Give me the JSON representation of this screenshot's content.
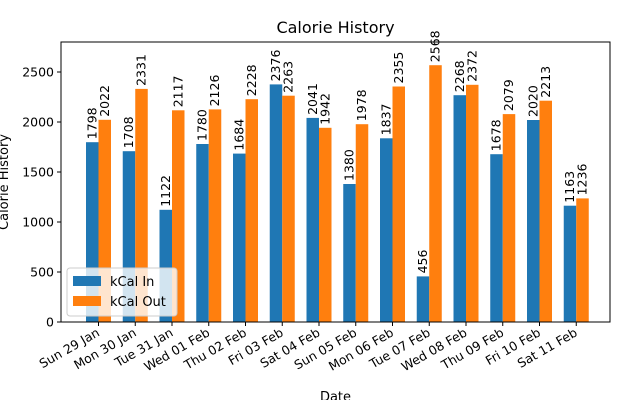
{
  "chart_data": {
    "type": "bar",
    "title": "Calorie History",
    "xlabel": "Date",
    "ylabel": "Calorie History",
    "ylim": [
      0,
      2800
    ],
    "yticks": [
      0,
      500,
      1000,
      1500,
      2000,
      2500
    ],
    "grid": false,
    "legend_position": "lower-left",
    "categories": [
      "Sun 29 Jan",
      "Mon 30 Jan",
      "Tue 31 Jan",
      "Wed 01 Feb",
      "Thu 02 Feb",
      "Fri 03 Feb",
      "Sat 04 Feb",
      "Sun 05 Feb",
      "Mon 06 Feb",
      "Tue 07 Feb",
      "Wed 08 Feb",
      "Thu 09 Feb",
      "Fri 10 Feb",
      "Sat 11 Feb"
    ],
    "series": [
      {
        "name": "kCal In",
        "color": "#1f77b4",
        "values": [
          1798,
          1708,
          1122,
          1780,
          1684,
          2376,
          2041,
          1380,
          1837,
          456,
          2268,
          1678,
          2020,
          1163
        ]
      },
      {
        "name": "kCal Out",
        "color": "#ff7f0e",
        "values": [
          2022,
          2331,
          2117,
          2126,
          2228,
          2263,
          1942,
          1978,
          2355,
          2568,
          2372,
          2079,
          2213,
          1236
        ]
      }
    ]
  }
}
